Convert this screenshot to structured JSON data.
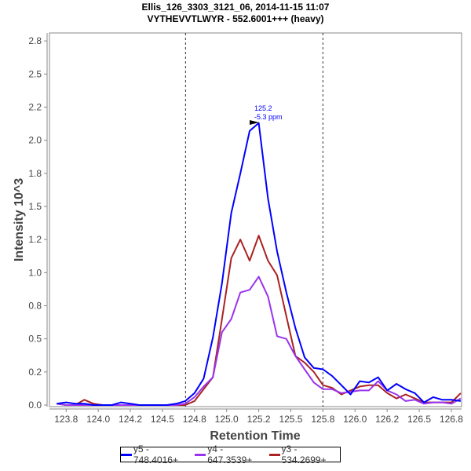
{
  "chart_data": {
    "type": "line",
    "title": "Ellis_126_3303_3121_06, 2014-11-15 11:07",
    "subtitle": "VYTHEVVTLWYR - 552.6001+++ (heavy)",
    "xlabel": "Retention Time",
    "ylabel": "Intensity 10^3",
    "xlim": [
      123.62,
      126.83
    ],
    "ylim": [
      0,
      2.81
    ],
    "x_ticks": [
      123.75,
      124.0,
      124.25,
      124.5,
      124.75,
      125.0,
      125.25,
      125.5,
      125.75,
      126.0,
      126.25,
      126.5,
      126.75
    ],
    "x_tick_labels": [
      "123.8",
      "124.0",
      "124.2",
      "124.5",
      "124.8",
      "125.0",
      "125.2",
      "125.5",
      "125.8",
      "126.0",
      "126.2",
      "126.5",
      "126.8"
    ],
    "y_ticks": [
      0,
      0.25,
      0.5,
      0.75,
      1.0,
      1.25,
      1.5,
      1.75,
      2.0,
      2.25,
      2.5,
      2.75
    ],
    "y_tick_labels": [
      "0.0",
      "0.2",
      "0.5",
      "0.8",
      "1.0",
      "1.2",
      "1.5",
      "1.8",
      "2.0",
      "2.2",
      "2.5",
      "2.8"
    ],
    "boundaries": [
      124.68,
      125.75
    ],
    "annotation": {
      "x": 125.25,
      "y": 2.13,
      "line1": "125.2",
      "line2": "-5.3 ppm"
    },
    "legend_position": "bottom",
    "x": [
      123.677,
      123.749,
      123.82,
      123.892,
      123.963,
      124.035,
      124.106,
      124.178,
      124.249,
      124.321,
      124.392,
      124.464,
      124.535,
      124.607,
      124.678,
      124.75,
      124.821,
      124.893,
      124.964,
      125.036,
      125.107,
      125.179,
      125.25,
      125.322,
      125.393,
      125.465,
      125.536,
      125.608,
      125.679,
      125.751,
      125.822,
      125.894,
      125.965,
      126.037,
      126.108,
      126.18,
      126.251,
      126.323,
      126.394,
      126.466,
      126.537,
      126.609,
      126.68,
      126.752,
      126.823
    ],
    "series": [
      {
        "name": "y5 - 748.4016+",
        "color": "#0000ff",
        "values": [
          0.01,
          0.02,
          0.01,
          0.01,
          0.0,
          0.0,
          0.0,
          0.02,
          0.01,
          0.0,
          0.0,
          0.0,
          0.0,
          0.01,
          0.03,
          0.09,
          0.2,
          0.51,
          0.92,
          1.45,
          1.75,
          2.07,
          2.13,
          1.56,
          1.16,
          0.85,
          0.58,
          0.36,
          0.28,
          0.27,
          0.22,
          0.15,
          0.08,
          0.18,
          0.17,
          0.21,
          0.11,
          0.16,
          0.12,
          0.09,
          0.02,
          0.06,
          0.04,
          0.04,
          0.03
        ]
      },
      {
        "name": "y4 - 647.3539+",
        "color": "#9933ee",
        "values": [
          0.01,
          0.0,
          0.0,
          0.0,
          0.0,
          0.0,
          0.0,
          0.0,
          0.0,
          0.0,
          0.0,
          0.0,
          0.0,
          0.0,
          0.01,
          0.06,
          0.14,
          0.21,
          0.55,
          0.65,
          0.85,
          0.87,
          0.97,
          0.82,
          0.52,
          0.5,
          0.37,
          0.27,
          0.17,
          0.12,
          0.12,
          0.09,
          0.1,
          0.11,
          0.11,
          0.18,
          0.11,
          0.08,
          0.03,
          0.04,
          0.01,
          0.02,
          0.02,
          0.01,
          0.05
        ]
      },
      {
        "name": "y3 - 534.2699+",
        "color": "#aa2222",
        "values": [
          0.01,
          0.0,
          0.0,
          0.04,
          0.01,
          0.0,
          0.0,
          0.0,
          0.0,
          0.0,
          0.0,
          0.0,
          0.0,
          0.0,
          0.0,
          0.03,
          0.12,
          0.21,
          0.65,
          1.11,
          1.25,
          1.09,
          1.28,
          1.09,
          0.98,
          0.67,
          0.37,
          0.32,
          0.25,
          0.15,
          0.13,
          0.08,
          0.11,
          0.14,
          0.15,
          0.15,
          0.09,
          0.05,
          0.08,
          0.05,
          0.02,
          0.02,
          0.02,
          0.02,
          0.09
        ]
      }
    ]
  }
}
